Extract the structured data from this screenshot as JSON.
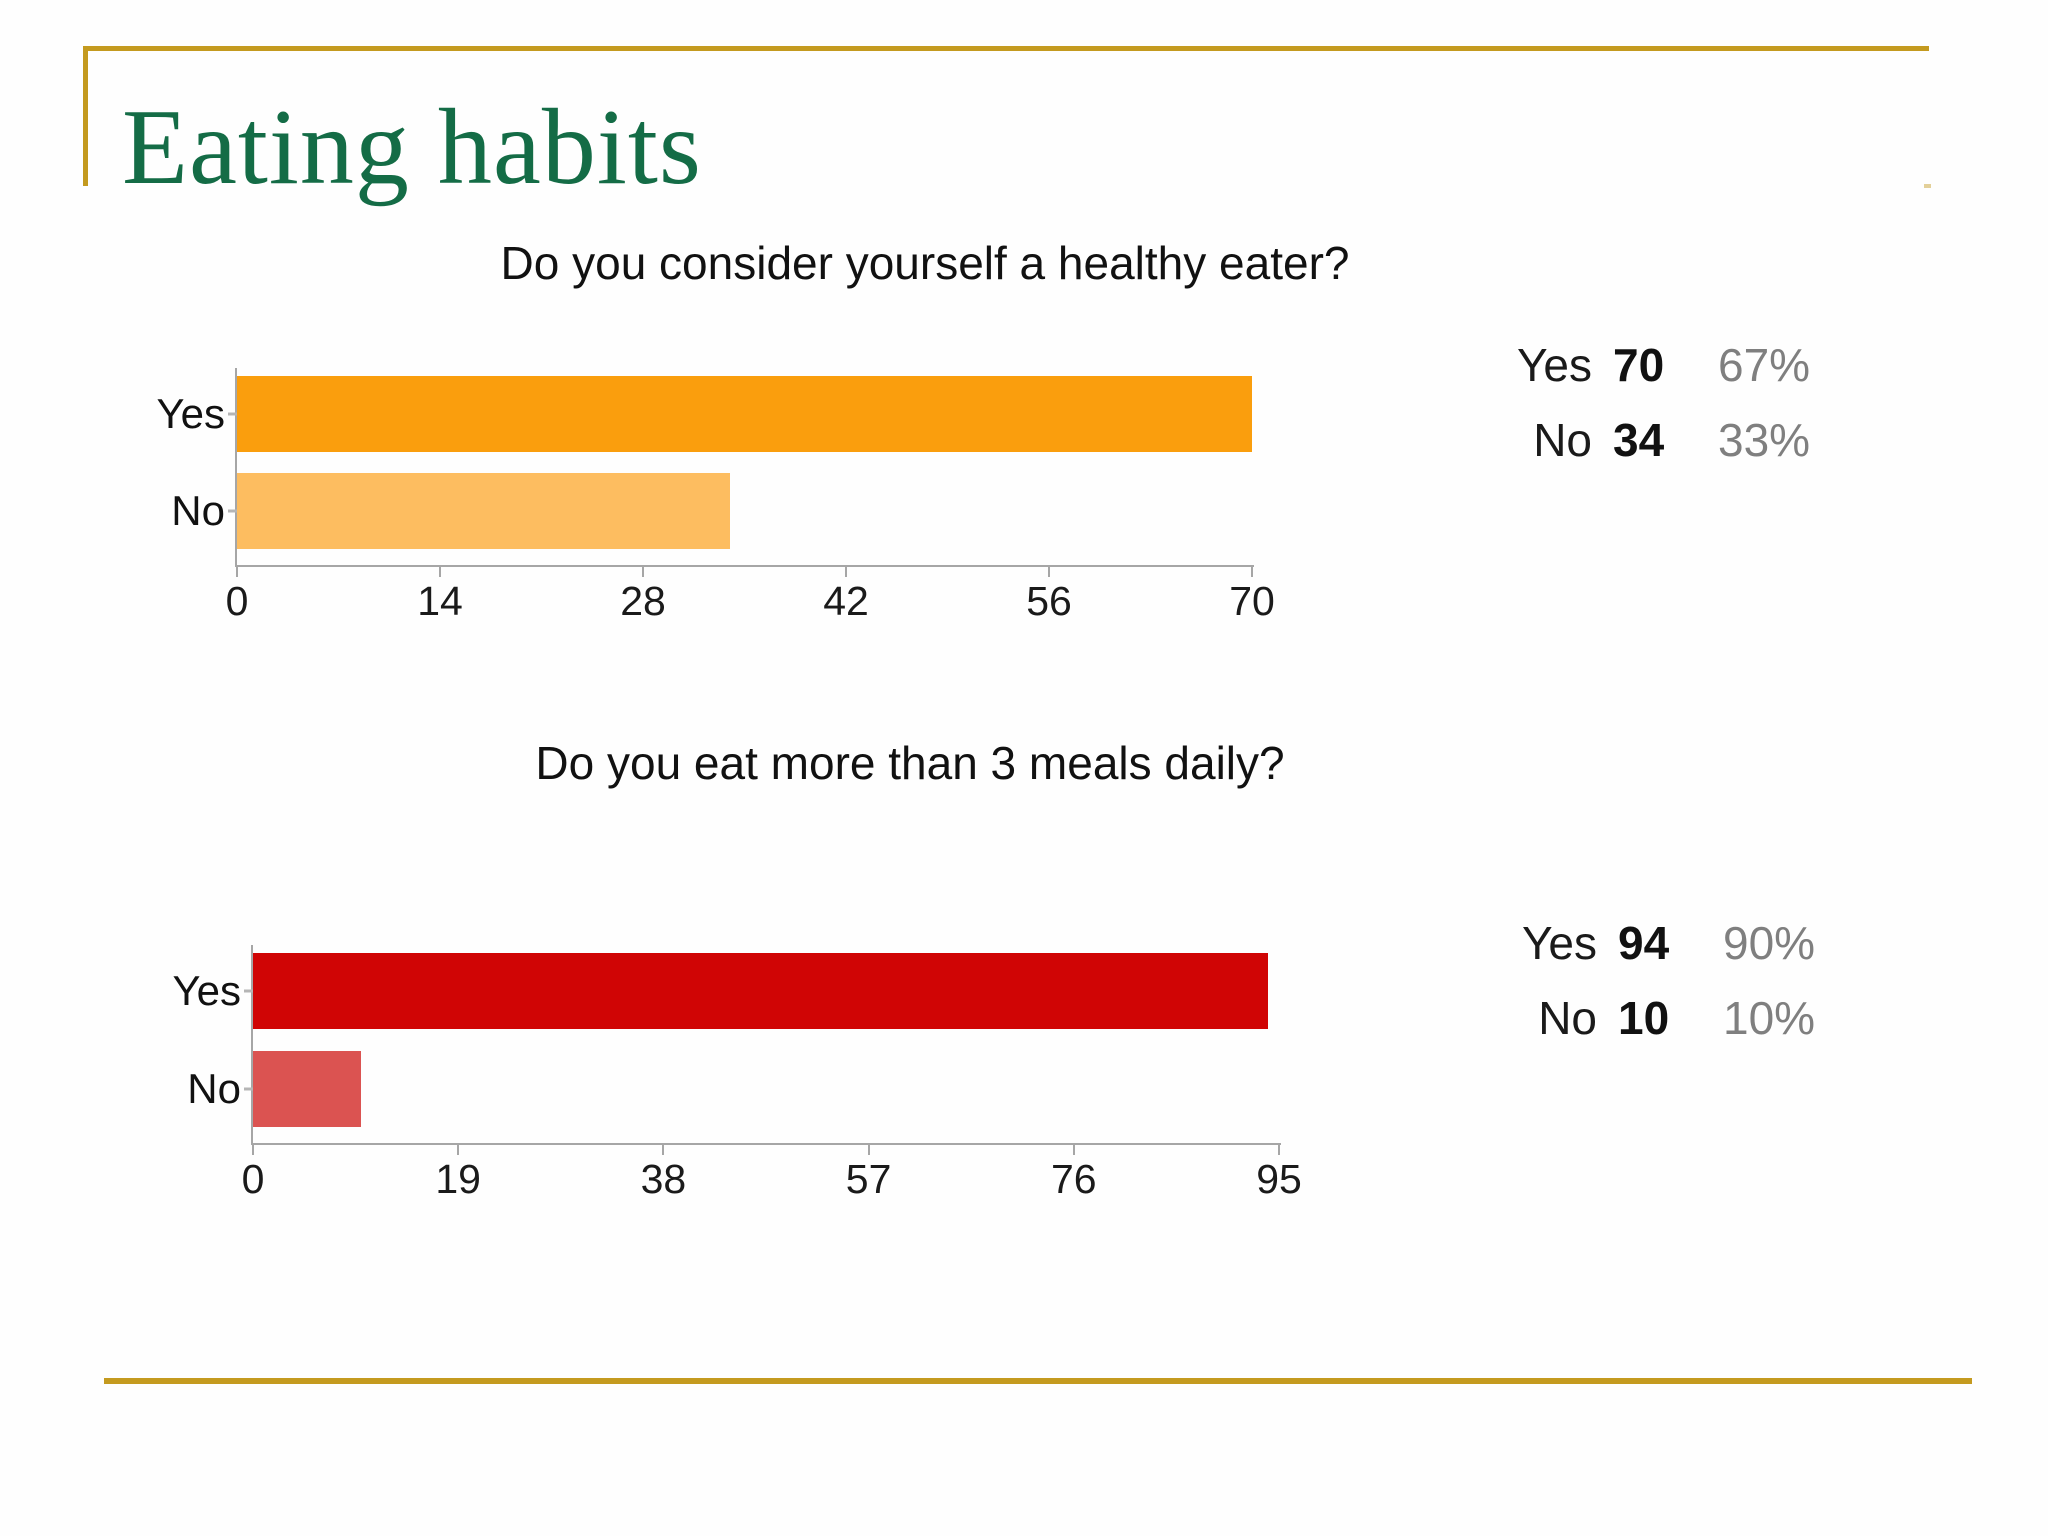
{
  "slide": {
    "title": "Eating habits",
    "title_color": "#146C46",
    "accent_gold": "#C49A1F",
    "percent_text_color": "#7F7F7F"
  },
  "chart_data": [
    {
      "type": "bar",
      "orientation": "horizontal",
      "title": "Do you consider yourself a healthy eater?",
      "categories": [
        "Yes",
        "No"
      ],
      "values": [
        70,
        34
      ],
      "bar_colors": [
        "#FA9E0D",
        "#FDBD60"
      ],
      "xlim": [
        0,
        70
      ],
      "xticks": [
        0,
        14,
        28,
        42,
        56,
        70
      ],
      "grid": false,
      "legend_position": "right",
      "legend": [
        {
          "label": "Yes",
          "value": "70",
          "percent": "67%"
        },
        {
          "label": "No",
          "value": "34",
          "percent": "33%"
        }
      ]
    },
    {
      "type": "bar",
      "orientation": "horizontal",
      "title": "Do you eat more than 3 meals daily?",
      "categories": [
        "Yes",
        "No"
      ],
      "values": [
        94,
        10
      ],
      "bar_colors": [
        "#D00505",
        "#DB5351"
      ],
      "xlim": [
        0,
        95
      ],
      "xticks": [
        0,
        19,
        38,
        57,
        76,
        95
      ],
      "grid": false,
      "legend_position": "right",
      "legend": [
        {
          "label": "Yes",
          "value": "94",
          "percent": "90%"
        },
        {
          "label": "No",
          "value": "10",
          "percent": "10%"
        }
      ]
    }
  ]
}
